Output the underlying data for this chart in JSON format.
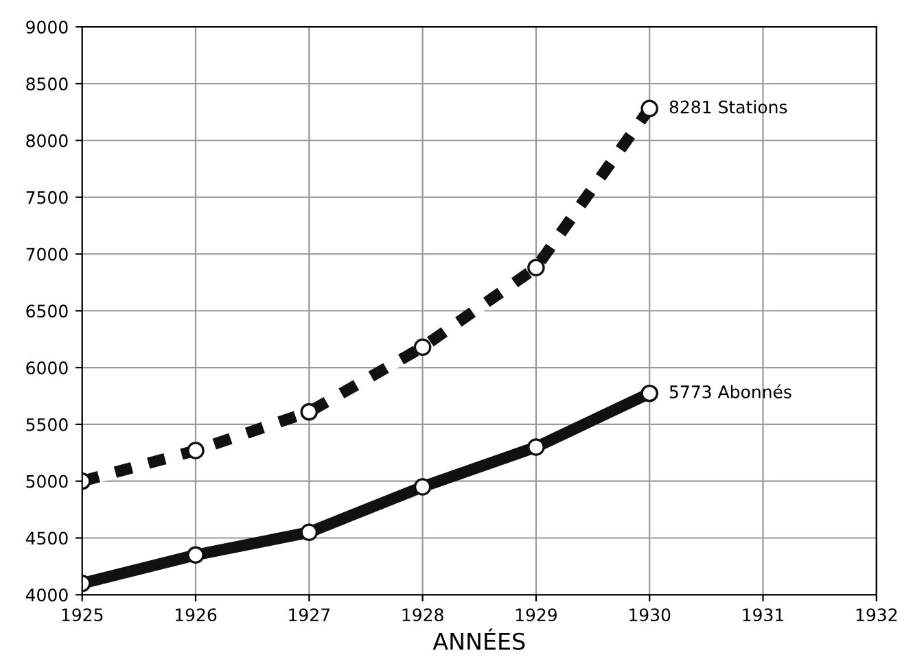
{
  "chart_data": {
    "type": "line",
    "xlabel": "ANNÉES",
    "x": [
      1925,
      1926,
      1927,
      1928,
      1929,
      1930
    ],
    "series": [
      {
        "color": "#111111",
        "values": [
          5000,
          5270,
          5610,
          6180,
          6880,
          8281
        ],
        "line_style": "dashed"
      },
      {
        "color": "#111111",
        "values": [
          4100,
          4350,
          4550,
          4950,
          5300,
          5773
        ],
        "line_style": "solid"
      }
    ],
    "annotations": [
      {
        "text": "8281 Stations",
        "x": 1930,
        "y": 8281
      },
      {
        "text": "5773 Abonnés",
        "x": 1930,
        "y": 5773
      }
    ],
    "xlim": [
      1925,
      1932
    ],
    "xticks": [
      1925,
      1926,
      1927,
      1928,
      1929,
      1930,
      1931,
      1932
    ],
    "ylim": [
      4000,
      9000
    ],
    "yticks": [
      4000,
      4500,
      5000,
      5500,
      6000,
      6500,
      7000,
      7500,
      8000,
      8500,
      9000
    ],
    "grid": true,
    "marker": "circle"
  }
}
